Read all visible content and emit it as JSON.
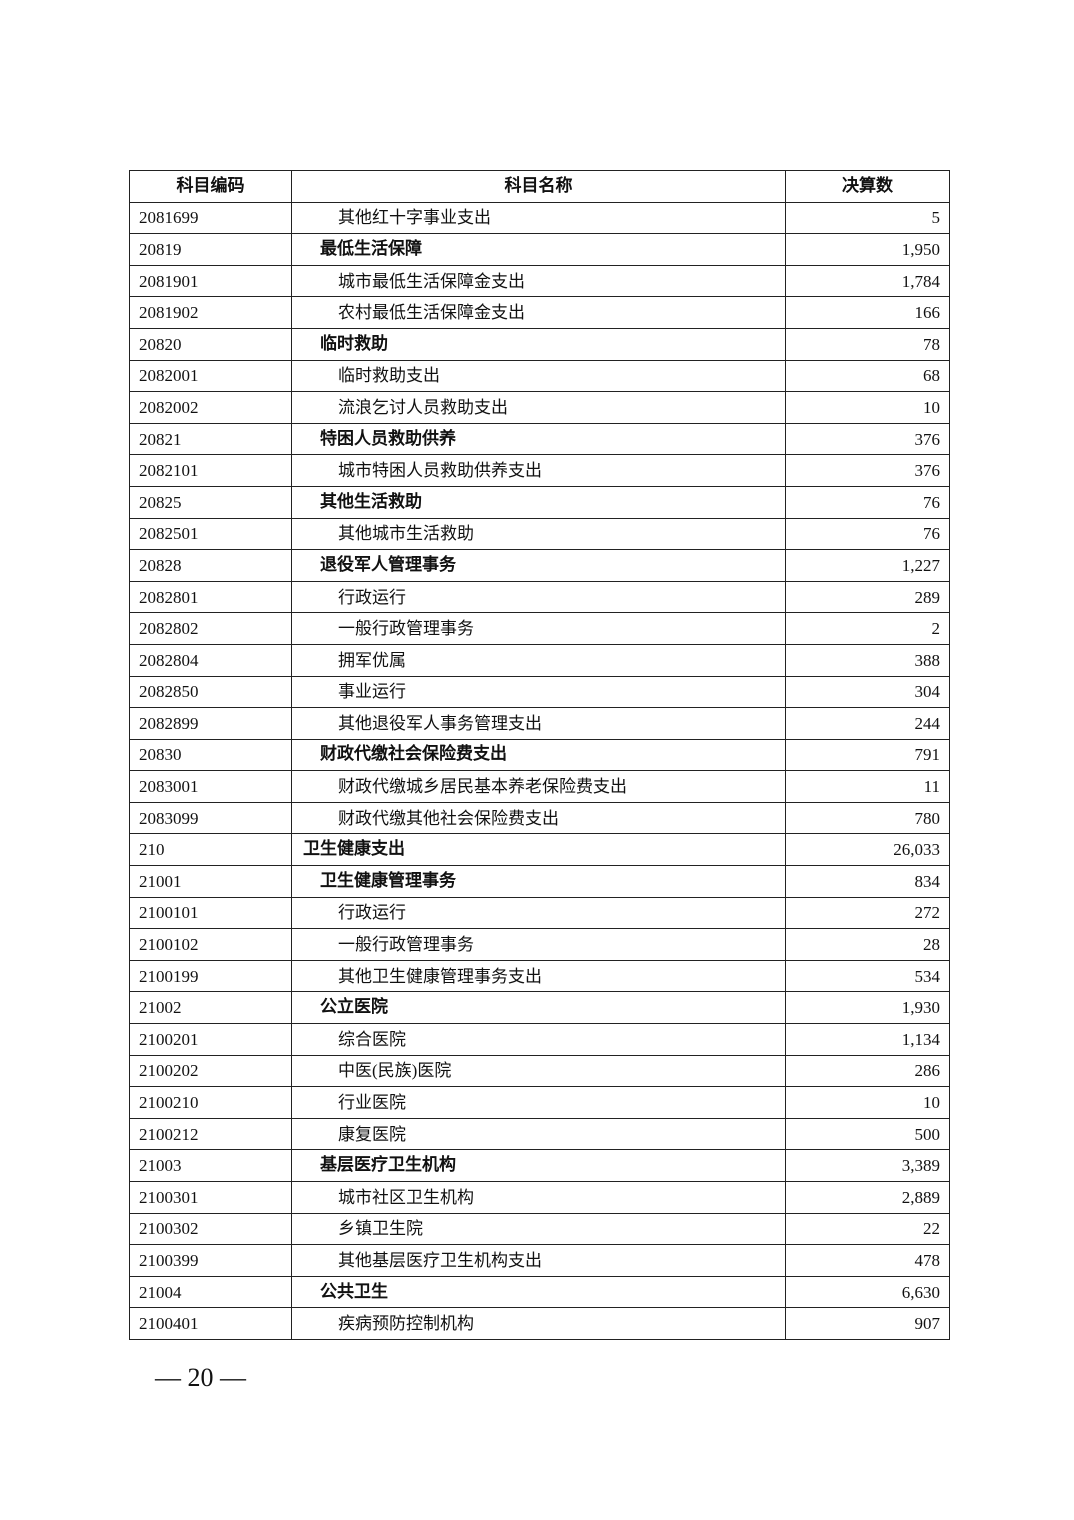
{
  "table": {
    "headers": [
      "科目编码",
      "科目名称",
      "决算数"
    ],
    "rows": [
      {
        "code": "2081699",
        "name": "其他红十字事业支出",
        "value": "5",
        "level": 3
      },
      {
        "code": "20819",
        "name": "最低生活保障",
        "value": "1,950",
        "level": 2
      },
      {
        "code": "2081901",
        "name": "城市最低生活保障金支出",
        "value": "1,784",
        "level": 3
      },
      {
        "code": "2081902",
        "name": "农村最低生活保障金支出",
        "value": "166",
        "level": 3
      },
      {
        "code": "20820",
        "name": "临时救助",
        "value": "78",
        "level": 2
      },
      {
        "code": "2082001",
        "name": "临时救助支出",
        "value": "68",
        "level": 3
      },
      {
        "code": "2082002",
        "name": "流浪乞讨人员救助支出",
        "value": "10",
        "level": 3
      },
      {
        "code": "20821",
        "name": "特困人员救助供养",
        "value": "376",
        "level": 2
      },
      {
        "code": "2082101",
        "name": "城市特困人员救助供养支出",
        "value": "376",
        "level": 3
      },
      {
        "code": "20825",
        "name": "其他生活救助",
        "value": "76",
        "level": 2
      },
      {
        "code": "2082501",
        "name": "其他城市生活救助",
        "value": "76",
        "level": 3
      },
      {
        "code": "20828",
        "name": "退役军人管理事务",
        "value": "1,227",
        "level": 2
      },
      {
        "code": "2082801",
        "name": "行政运行",
        "value": "289",
        "level": 3
      },
      {
        "code": "2082802",
        "name": "一般行政管理事务",
        "value": "2",
        "level": 3
      },
      {
        "code": "2082804",
        "name": "拥军优属",
        "value": "388",
        "level": 3
      },
      {
        "code": "2082850",
        "name": "事业运行",
        "value": "304",
        "level": 3
      },
      {
        "code": "2082899",
        "name": "其他退役军人事务管理支出",
        "value": "244",
        "level": 3
      },
      {
        "code": "20830",
        "name": "财政代缴社会保险费支出",
        "value": "791",
        "level": 2
      },
      {
        "code": "2083001",
        "name": "财政代缴城乡居民基本养老保险费支出",
        "value": "11",
        "level": 3
      },
      {
        "code": "2083099",
        "name": "财政代缴其他社会保险费支出",
        "value": "780",
        "level": 3
      },
      {
        "code": "210",
        "name": "卫生健康支出",
        "value": "26,033",
        "level": 1
      },
      {
        "code": "21001",
        "name": "卫生健康管理事务",
        "value": "834",
        "level": 2
      },
      {
        "code": "2100101",
        "name": "行政运行",
        "value": "272",
        "level": 3
      },
      {
        "code": "2100102",
        "name": "一般行政管理事务",
        "value": "28",
        "level": 3
      },
      {
        "code": "2100199",
        "name": "其他卫生健康管理事务支出",
        "value": "534",
        "level": 3
      },
      {
        "code": "21002",
        "name": "公立医院",
        "value": "1,930",
        "level": 2
      },
      {
        "code": "2100201",
        "name": "综合医院",
        "value": "1,134",
        "level": 3
      },
      {
        "code": "2100202",
        "name": "中医(民族)医院",
        "value": "286",
        "level": 3
      },
      {
        "code": "2100210",
        "name": "行业医院",
        "value": "10",
        "level": 3
      },
      {
        "code": "2100212",
        "name": "康复医院",
        "value": "500",
        "level": 3
      },
      {
        "code": "21003",
        "name": "基层医疗卫生机构",
        "value": "3,389",
        "level": 2
      },
      {
        "code": "2100301",
        "name": "城市社区卫生机构",
        "value": "2,889",
        "level": 3
      },
      {
        "code": "2100302",
        "name": "乡镇卫生院",
        "value": "22",
        "level": 3
      },
      {
        "code": "2100399",
        "name": "其他基层医疗卫生机构支出",
        "value": "478",
        "level": 3
      },
      {
        "code": "21004",
        "name": "公共卫生",
        "value": "6,630",
        "level": 2
      },
      {
        "code": "2100401",
        "name": "疾病预防控制机构",
        "value": "907",
        "level": 3
      }
    ]
  },
  "footer": {
    "page_number": "— 20 —"
  }
}
